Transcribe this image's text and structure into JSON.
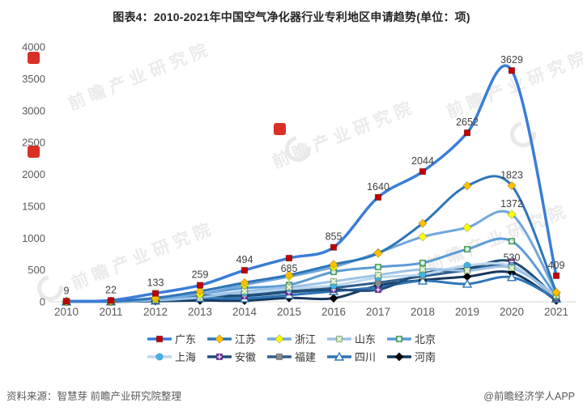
{
  "chart_data": {
    "type": "line",
    "title": "图表4：2010-2021年中国空气净化器行业专利地区申请趋势(单位：项)",
    "xlabel": "",
    "ylabel": "",
    "x": [
      "2010",
      "2011",
      "2012",
      "2013",
      "2014",
      "2015",
      "2016",
      "2017",
      "2018",
      "2019",
      "2020",
      "2021"
    ],
    "ylim": [
      0,
      4000
    ],
    "ytick_interval": 500,
    "grid": false,
    "legend_position": "bottom",
    "axis_color": "#d9d9d9",
    "tick_text_color": "#595959",
    "label_text_color": "#404040",
    "series": [
      {
        "name": "广东",
        "line_color": "#3b7dd8",
        "line_width": 3.5,
        "marker": "square",
        "marker_color": "#c00000",
        "values": [
          9,
          22,
          133,
          259,
          494,
          685,
          855,
          1640,
          2044,
          2652,
          3629,
          409
        ],
        "labels": {
          "0": "9",
          "1": "22",
          "2": "133",
          "3": "259",
          "4": "494",
          "5": "685",
          "6": "855",
          "7": "1640",
          "8": "2044",
          "9": "2652",
          "10": "3629",
          "11": "409"
        },
        "labels_below": [
          5
        ]
      },
      {
        "name": "江苏",
        "line_color": "#2e75b6",
        "line_width": 3,
        "marker": "diamond",
        "marker_color": "#ffc000",
        "values": [
          2,
          8,
          60,
          165,
          300,
          420,
          585,
          760,
          1230,
          1820,
          1823,
          150
        ],
        "labels": {
          "10": "1823"
        },
        "labels_below": []
      },
      {
        "name": "浙江",
        "line_color": "#71a8dc",
        "line_width": 3,
        "marker": "diamond",
        "marker_color": "#ffff00",
        "values": [
          1,
          5,
          45,
          120,
          265,
          395,
          545,
          770,
          1020,
          1165,
          1372,
          140
        ],
        "labels": {
          "10": "1372"
        },
        "labels_below": []
      },
      {
        "name": "山东",
        "line_color": "#9dc3e6",
        "line_width": 3,
        "marker": "xsquare",
        "marker_color": "#a9d18e",
        "values": [
          1,
          4,
          25,
          70,
          165,
          230,
          320,
          420,
          510,
          490,
          530,
          100
        ],
        "labels": {
          "10": "530"
        },
        "labels_below": []
      },
      {
        "name": "北京",
        "line_color": "#5b9bd5",
        "line_width": 3,
        "marker": "starsquare",
        "marker_color": "#3cb054",
        "values": [
          2,
          6,
          35,
          125,
          215,
          265,
          470,
          545,
          610,
          825,
          950,
          90
        ],
        "labels": {},
        "labels_below": []
      },
      {
        "name": "上海",
        "line_color": "#bdd7ee",
        "line_width": 3,
        "marker": "circle",
        "marker_color": "#40b4e5",
        "values": [
          3,
          10,
          50,
          130,
          140,
          205,
          255,
          380,
          430,
          570,
          560,
          75
        ],
        "labels": {},
        "labels_below": []
      },
      {
        "name": "安徽",
        "line_color": "#1f4e79",
        "line_width": 3,
        "marker": "plussquare",
        "marker_color": "#7030a0",
        "values": [
          1,
          3,
          20,
          90,
          90,
          150,
          190,
          190,
          445,
          520,
          630,
          60
        ],
        "labels": {},
        "labels_below": []
      },
      {
        "name": "福建",
        "line_color": "#2f5f8f",
        "line_width": 3,
        "marker": "square",
        "marker_color": "#8c8c8c",
        "values": [
          2,
          5,
          30,
          90,
          115,
          165,
          220,
          300,
          400,
          495,
          560,
          55
        ],
        "labels": {},
        "labels_below": []
      },
      {
        "name": "四川",
        "line_color": "#2e75b6",
        "line_width": 3,
        "marker": "triangle",
        "marker_color": "#ffffff",
        "values": [
          1,
          3,
          15,
          55,
          50,
          105,
          165,
          230,
          330,
          280,
          385,
          45
        ],
        "labels": {},
        "labels_below": []
      },
      {
        "name": "河南",
        "line_color": "#17375e",
        "line_width": 3,
        "marker": "diamond",
        "marker_color": "#000000",
        "values": [
          1,
          2,
          10,
          20,
          18,
          60,
          55,
          255,
          340,
          395,
          455,
          20
        ],
        "labels": {},
        "labels_below": []
      }
    ]
  },
  "footer": {
    "source": "资料来源：智慧芽 前瞻产业研究院整理",
    "credit": "@前瞻经济学人APP"
  },
  "watermark": {
    "text": "前瞻产业研究院",
    "badge_color": "#d93025"
  }
}
